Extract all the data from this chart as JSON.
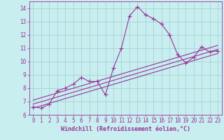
{
  "xlabel": "Windchill (Refroidissement éolien,°C)",
  "bg_color": "#c8eef0",
  "grid_color": "#b0d8dc",
  "line_color": "#993399",
  "xlim": [
    -0.5,
    23.5
  ],
  "ylim": [
    6.0,
    14.5
  ],
  "yticks": [
    6,
    7,
    8,
    9,
    10,
    11,
    12,
    13,
    14
  ],
  "xticks": [
    0,
    1,
    2,
    3,
    4,
    5,
    6,
    7,
    8,
    9,
    10,
    11,
    12,
    13,
    14,
    15,
    16,
    17,
    18,
    19,
    20,
    21,
    22,
    23
  ],
  "series1_x": [
    0,
    1,
    2,
    3,
    4,
    5,
    6,
    7,
    8,
    9,
    10,
    11,
    12,
    13,
    14,
    15,
    16,
    17,
    18,
    19,
    20,
    21,
    22,
    23
  ],
  "series1_y": [
    6.6,
    6.5,
    6.8,
    7.8,
    8.0,
    8.3,
    8.8,
    8.5,
    8.5,
    7.5,
    9.5,
    11.0,
    13.4,
    14.1,
    13.5,
    13.2,
    12.8,
    12.0,
    10.5,
    9.9,
    10.3,
    11.1,
    10.7,
    10.8
  ],
  "series2_x": [
    0,
    23
  ],
  "series2_y": [
    6.5,
    10.6
  ],
  "series3_x": [
    0,
    23
  ],
  "series3_y": [
    6.8,
    10.9
  ],
  "series4_x": [
    0,
    23
  ],
  "series4_y": [
    7.1,
    11.2
  ],
  "marker": "+",
  "marker_size": 4,
  "linewidth": 0.8,
  "tick_fontsize": 5.5,
  "label_fontsize": 6.0
}
